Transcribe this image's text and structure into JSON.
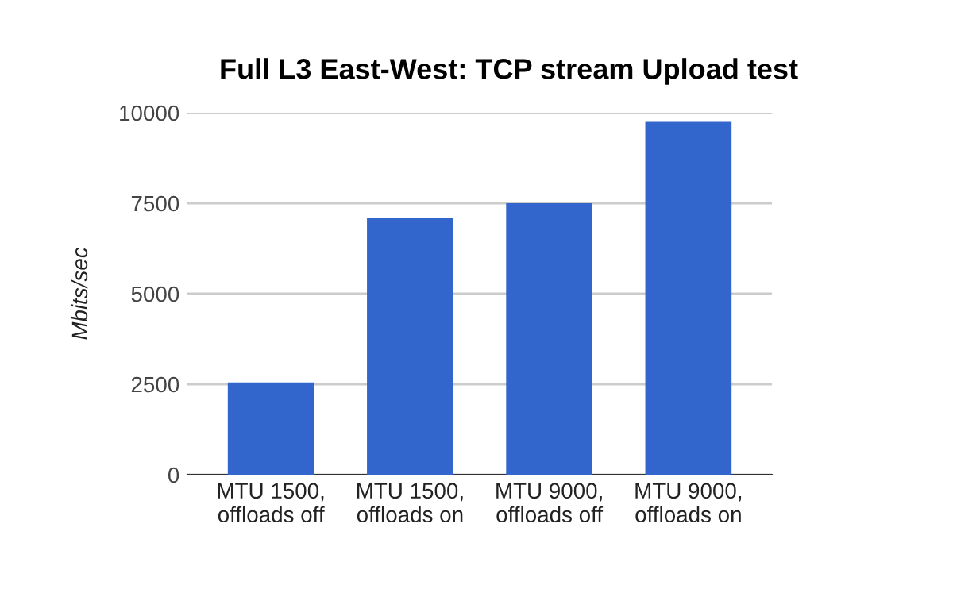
{
  "chart_data": {
    "type": "bar",
    "title": "Full L3 East-West: TCP stream Upload test",
    "ylabel": "Mbits/sec",
    "categories": [
      "MTU 1500,\noffloads off",
      "MTU 1500,\noffloads on",
      "MTU 9000,\noffloads off",
      "MTU 9000,\noffloads on"
    ],
    "values": [
      2550,
      7100,
      7500,
      9750
    ],
    "color": "#3366cc",
    "ylim": [
      0,
      10000
    ],
    "yticks": [
      0,
      2500,
      5000,
      7500,
      10000
    ],
    "grid": "y",
    "legend": false
  }
}
